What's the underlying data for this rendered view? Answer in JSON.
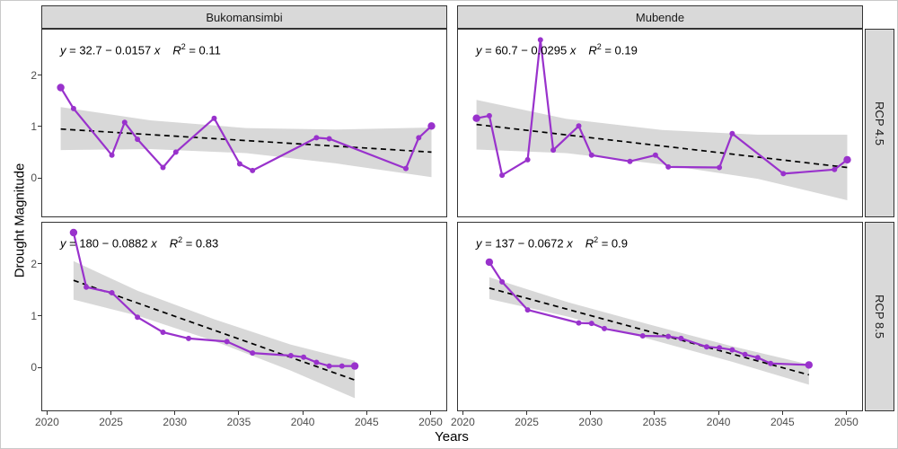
{
  "figure": {
    "xlabel": "Years",
    "ylabel": "Drought Magnitude",
    "facet_columns": [
      "Bukomansimbi",
      "Mubende"
    ],
    "facet_rows": [
      "RCP 4.5",
      "RCP 8.5"
    ]
  },
  "axes": {
    "x_ticks": [
      2020,
      2025,
      2030,
      2035,
      2040,
      2045,
      2050
    ],
    "y_ticks": [
      0,
      1,
      2
    ],
    "x_range": [
      2019.55,
      2051.3
    ],
    "y_range_top": [
      -0.77,
      2.91
    ],
    "y_range_bottom": [
      -0.84,
      2.81
    ],
    "grid": "off",
    "colors": {
      "series": "#9932CC",
      "trend": "#000000",
      "band": "#D8D8D8",
      "strip_fill": "#D9D9D9",
      "panel_border": "#333333",
      "tick_text": "#4D4D4D"
    }
  },
  "chart_data": [
    {
      "type": "line",
      "position": "top-left",
      "facet_col": "Bukomansimbi",
      "facet_row": "RCP 4.5",
      "equation": {
        "y_var": "y",
        "body": " = 32.7 − 0.0157 ",
        "x_var": "x",
        "r_label": "R",
        "r_sup": "2",
        "r_value": " = 0.11"
      },
      "x": [
        2021,
        2022,
        2025,
        2026,
        2027,
        2029,
        2030,
        2033,
        2035,
        2036,
        2041,
        2042,
        2048,
        2049,
        2050
      ],
      "y": [
        1.78,
        1.37,
        0.46,
        1.1,
        0.77,
        0.22,
        0.52,
        1.18,
        0.29,
        0.16,
        0.8,
        0.78,
        0.2,
        0.8,
        1.03
      ],
      "trend": {
        "x": [
          2021,
          2050
        ],
        "y": [
          0.97,
          0.52
        ]
      },
      "band": {
        "x": [
          2021,
          2028,
          2035.5,
          2042.5,
          2050
        ],
        "top": [
          1.4,
          1.14,
          0.99,
          0.96,
          1.0
        ],
        "bottom": [
          0.56,
          0.58,
          0.5,
          0.3,
          0.03
        ]
      }
    },
    {
      "type": "line",
      "position": "top-right",
      "facet_col": "Mubende",
      "facet_row": "RCP 4.5",
      "equation": {
        "y_var": "y",
        "body": " = 60.7 − 0.0295 ",
        "x_var": "x",
        "r_label": "R",
        "r_sup": "2",
        "r_value": " = 0.19"
      },
      "x": [
        2021,
        2022,
        2023,
        2025,
        2026,
        2027,
        2029,
        2030,
        2033,
        2035,
        2036,
        2040,
        2041,
        2045,
        2049,
        2050
      ],
      "y": [
        1.18,
        1.23,
        0.07,
        0.37,
        2.71,
        0.56,
        1.03,
        0.46,
        0.34,
        0.46,
        0.23,
        0.22,
        0.88,
        0.1,
        0.18,
        0.37
      ],
      "trend": {
        "x": [
          2021,
          2050
        ],
        "y": [
          1.06,
          0.22
        ]
      },
      "band": {
        "x": [
          2021,
          2028,
          2035.5,
          2043,
          2050
        ],
        "top": [
          1.54,
          1.17,
          0.95,
          0.86,
          0.86
        ],
        "bottom": [
          0.57,
          0.5,
          0.28,
          0.0,
          -0.42
        ]
      }
    },
    {
      "type": "line",
      "position": "bottom-left",
      "facet_col": "Bukomansimbi",
      "facet_row": "RCP 8.5",
      "equation": {
        "y_var": "y",
        "body": " = 180 − 0.0882 ",
        "x_var": "x",
        "r_label": "R",
        "r_sup": "2",
        "r_value": " = 0.83"
      },
      "x": [
        2022,
        2023,
        2025,
        2027,
        2029,
        2031,
        2034,
        2036,
        2039,
        2040,
        2041,
        2042,
        2043,
        2044
      ],
      "y": [
        2.62,
        1.57,
        1.46,
        0.99,
        0.7,
        0.58,
        0.52,
        0.3,
        0.25,
        0.22,
        0.12,
        0.05,
        0.05,
        0.05
      ],
      "trend": {
        "x": [
          2022,
          2044
        ],
        "y": [
          1.7,
          -0.22
        ]
      },
      "band": {
        "x": [
          2022,
          2027,
          2033,
          2039,
          2044
        ],
        "top": [
          2.07,
          1.5,
          0.95,
          0.46,
          0.15
        ],
        "bottom": [
          1.33,
          1.02,
          0.53,
          -0.04,
          -0.57
        ]
      }
    },
    {
      "type": "line",
      "position": "bottom-right",
      "facet_col": "Mubende",
      "facet_row": "RCP 8.5",
      "equation": {
        "y_var": "y",
        "body": " = 137 − 0.0672 ",
        "x_var": "x",
        "r_label": "R",
        "r_sup": "2",
        "r_value": " = 0.9"
      },
      "x": [
        2022,
        2023,
        2025,
        2029,
        2030,
        2031,
        2034,
        2036,
        2037,
        2039,
        2040,
        2041,
        2042,
        2043,
        2044,
        2047
      ],
      "y": [
        2.05,
        1.67,
        1.13,
        0.88,
        0.87,
        0.77,
        0.63,
        0.62,
        0.58,
        0.42,
        0.4,
        0.36,
        0.27,
        0.21,
        0.1,
        0.07
      ],
      "trend": {
        "x": [
          2022,
          2047
        ],
        "y": [
          1.55,
          -0.12
        ]
      },
      "band": {
        "x": [
          2022,
          2028,
          2034.5,
          2041,
          2047
        ],
        "top": [
          1.76,
          1.29,
          0.85,
          0.43,
          0.08
        ],
        "bottom": [
          1.34,
          1.01,
          0.57,
          0.13,
          -0.31
        ]
      }
    }
  ]
}
